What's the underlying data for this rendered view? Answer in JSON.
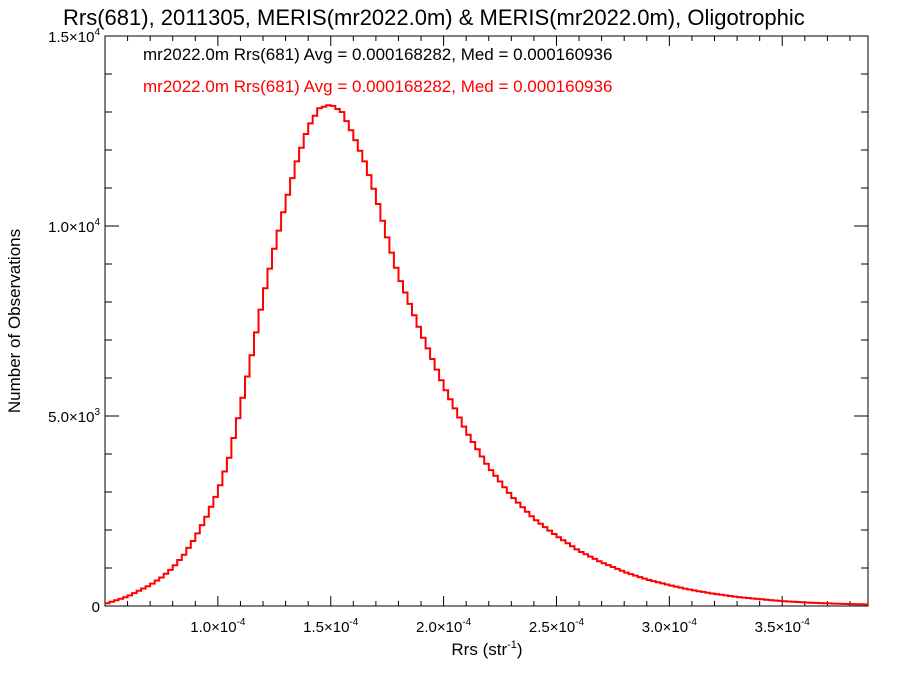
{
  "chart_data": {
    "type": "histogram",
    "title": "Rrs(681), 2011305, MERIS(mr2022.0m) & MERIS(mr2022.0m), Oligotrophic",
    "xlabel": "Rrs (str",
    "xlabel_sup": "-1",
    "xlabel_close": ")",
    "ylabel": "Number of Observations",
    "xlim": [
      5e-05,
      0.000388
    ],
    "ylim": [
      0,
      15000
    ],
    "grid": false,
    "x_ticks": [
      {
        "value": 0.0001,
        "label": "1.0×10",
        "exp": "-4"
      },
      {
        "value": 0.00015,
        "label": "1.5×10",
        "exp": "-4"
      },
      {
        "value": 0.0002,
        "label": "2.0×10",
        "exp": "-4"
      },
      {
        "value": 0.00025,
        "label": "2.5×10",
        "exp": "-4"
      },
      {
        "value": 0.0003,
        "label": "3.0×10",
        "exp": "-4"
      },
      {
        "value": 0.00035,
        "label": "3.5×10",
        "exp": "-4"
      }
    ],
    "y_ticks": [
      {
        "value": 0,
        "label": "0",
        "exp": ""
      },
      {
        "value": 5000,
        "label": "5.0×10",
        "exp": "3"
      },
      {
        "value": 10000,
        "label": "1.0×10",
        "exp": "4"
      },
      {
        "value": 15000,
        "label": "1.5×10",
        "exp": "4"
      }
    ],
    "annotations": [
      {
        "text": "mr2022.0m Rrs(681) Avg = 0.000168282, Med = 0.000160936",
        "color": "#000000"
      },
      {
        "text": "mr2022.0m Rrs(681) Avg = 0.000168282, Med = 0.000160936",
        "color": "#ff0000"
      }
    ],
    "series": [
      {
        "color": "#ff0000",
        "x": [
          5e-05,
          6e-05,
          7e-05,
          7.5e-05,
          8e-05,
          8.5e-05,
          9e-05,
          9.5e-05,
          0.0001,
          0.000105,
          0.00011,
          0.000115,
          0.00012,
          0.000125,
          0.00013,
          0.000135,
          0.00014,
          0.000145,
          0.00015,
          0.000155,
          0.00016,
          0.000165,
          0.00017,
          0.000175,
          0.00018,
          0.00019,
          0.0002,
          0.00021,
          0.00022,
          0.00023,
          0.00024,
          0.00025,
          0.00026,
          0.00027,
          0.00028,
          0.00029,
          0.0003,
          0.00031,
          0.00032,
          0.00033,
          0.00034,
          0.00035,
          0.00036,
          0.00037,
          0.00038,
          0.000388
        ],
        "values": [
          50,
          250,
          550,
          750,
          1000,
          1350,
          1800,
          2350,
          3000,
          3900,
          5200,
          6600,
          8100,
          9400,
          10600,
          11700,
          12600,
          13100,
          13200,
          13000,
          12400,
          11700,
          10800,
          9700,
          8700,
          7200,
          5800,
          4600,
          3650,
          2900,
          2300,
          1850,
          1450,
          1150,
          900,
          700,
          550,
          420,
          320,
          240,
          180,
          130,
          95,
          70,
          50,
          40
        ]
      }
    ]
  }
}
